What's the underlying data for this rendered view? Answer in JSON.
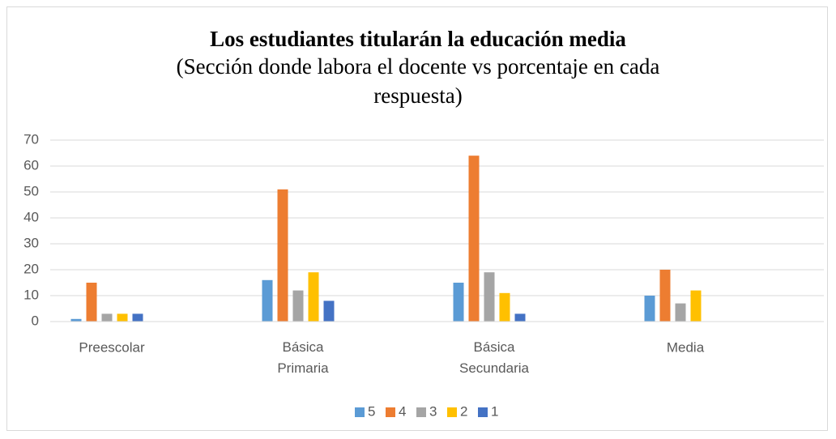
{
  "chart_data": {
    "type": "bar",
    "title": "Los estudiantes titularán la educación media",
    "subtitle": "(Sección donde labora el docente vs porcentaje en cada respuesta)",
    "categories": [
      "Preescolar",
      "Básica Primaria",
      "Básica Secundaria",
      "Media"
    ],
    "series": [
      {
        "name": "5",
        "color": "#5b9bd5",
        "values": [
          1,
          16,
          15,
          10
        ]
      },
      {
        "name": "4",
        "color": "#ed7d31",
        "values": [
          15,
          51,
          64,
          20
        ]
      },
      {
        "name": "3",
        "color": "#a5a5a5",
        "values": [
          3,
          12,
          19,
          7
        ]
      },
      {
        "name": "2",
        "color": "#ffc000",
        "values": [
          3,
          19,
          11,
          12
        ]
      },
      {
        "name": "1",
        "color": "#4472c4",
        "values": [
          3,
          8,
          3,
          0
        ]
      }
    ],
    "ylim": [
      0,
      70
    ],
    "yticks": [
      0,
      10,
      20,
      30,
      40,
      50,
      60,
      70
    ],
    "grid": true,
    "legend": "bottom"
  }
}
